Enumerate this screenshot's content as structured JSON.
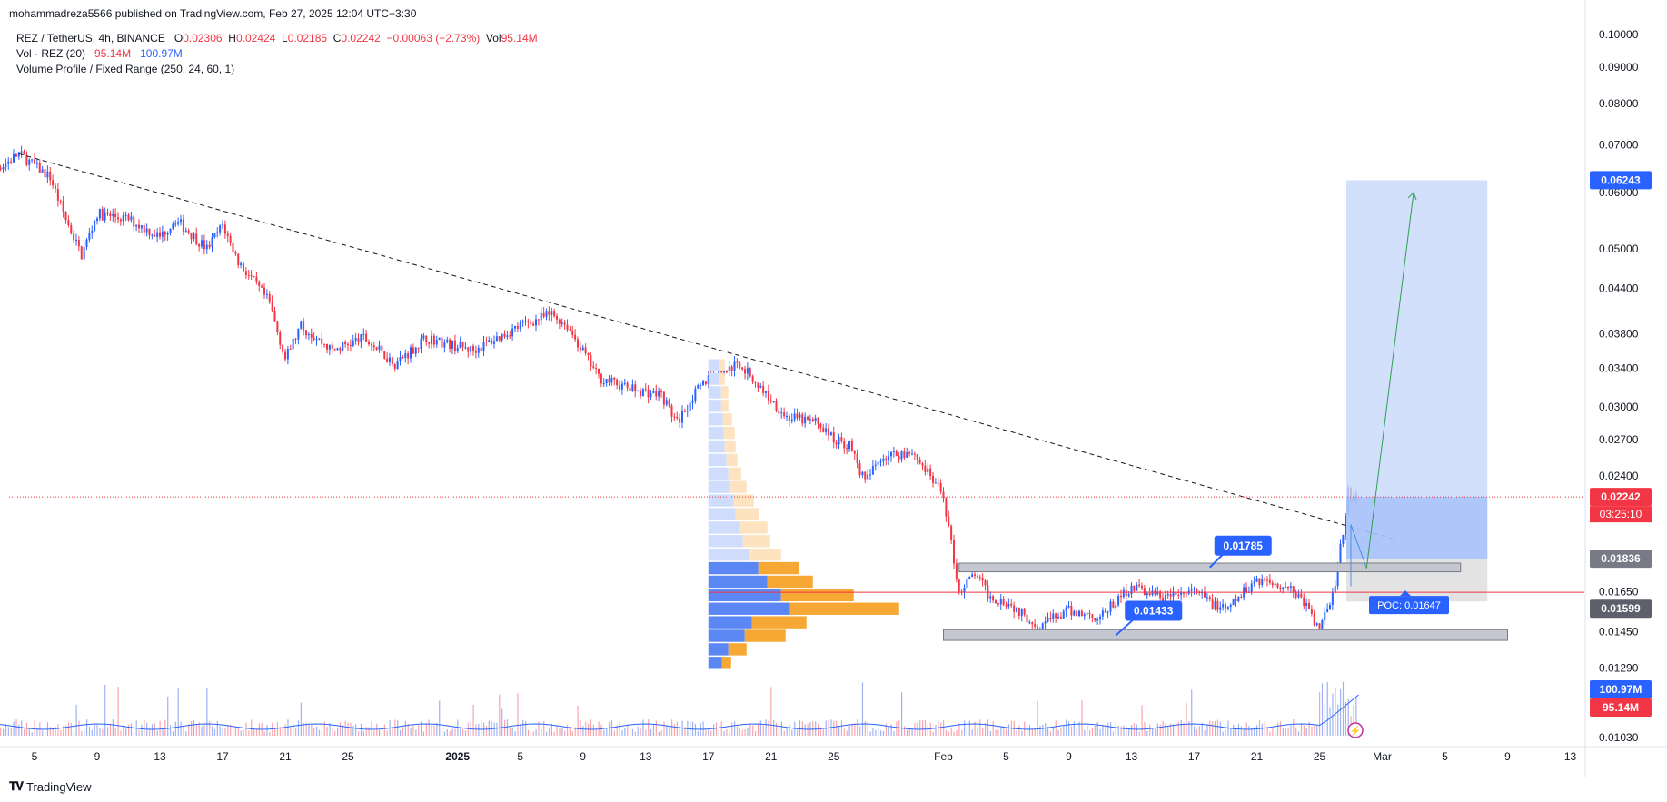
{
  "header": {
    "published": "mohammadreza5566 published on TradingView.com, Feb 27, 2025 12:04 UTC+3:30"
  },
  "legend": {
    "symbol": "REZ / TetherUS, 4h, BINANCE",
    "o_label": "O",
    "o_value": "0.02306",
    "h_label": "H",
    "h_value": "0.02424",
    "l_label": "L",
    "l_value": "0.02185",
    "c_label": "C",
    "c_value": "0.02242",
    "change": "−0.00063 (−2.73%)",
    "vol_label": "Vol",
    "vol_value": "95.14M",
    "vol_ind_label": "Vol · REZ (20)",
    "vol_ind_v1": "95.14M",
    "vol_ind_v2": "100.97M",
    "vp_label": "Volume Profile / Fixed Range (250, 24, 60, 1)"
  },
  "footer": {
    "brand": "TradingView",
    "logo_icon": "tradingview-logo-icon"
  },
  "colors": {
    "up": "#2962ff",
    "down": "#f23645",
    "trendline": "#131722",
    "target_zone": "#c8d8fb",
    "stop_zone": "#e0e0e0",
    "poc_line": "#f23645",
    "vp_up": "#5b87f5",
    "vp_down": "#f7a733"
  },
  "chart_data": {
    "type": "candlestick",
    "symbol": "REZ / TetherUS",
    "timeframe": "4h",
    "exchange": "BINANCE",
    "y_scale": "log",
    "ylim": [
      0.0103,
      0.1
    ],
    "y_ticks": [
      "0.10000",
      "0.09000",
      "0.08000",
      "0.07000",
      "0.06000",
      "0.05000",
      "0.04400",
      "0.03800",
      "0.03400",
      "0.03000",
      "0.02700",
      "0.02400",
      "0.01650",
      "0.01450",
      "0.01290",
      "0.01030"
    ],
    "x_ticks": [
      {
        "label": "5",
        "date": "2024-12-05"
      },
      {
        "label": "9",
        "date": "2024-12-09"
      },
      {
        "label": "13",
        "date": "2024-12-13"
      },
      {
        "label": "17",
        "date": "2024-12-17"
      },
      {
        "label": "21",
        "date": "2024-12-21"
      },
      {
        "label": "25",
        "date": "2024-12-25"
      },
      {
        "label": "2025",
        "date": "2025-01-01"
      },
      {
        "label": "5",
        "date": "2025-01-05"
      },
      {
        "label": "9",
        "date": "2025-01-09"
      },
      {
        "label": "13",
        "date": "2025-01-13"
      },
      {
        "label": "17",
        "date": "2025-01-17"
      },
      {
        "label": "21",
        "date": "2025-01-21"
      },
      {
        "label": "25",
        "date": "2025-01-25"
      },
      {
        "label": "Feb",
        "date": "2025-02-01"
      },
      {
        "label": "5",
        "date": "2025-02-05"
      },
      {
        "label": "9",
        "date": "2025-02-09"
      },
      {
        "label": "13",
        "date": "2025-02-13"
      },
      {
        "label": "17",
        "date": "2025-02-17"
      },
      {
        "label": "21",
        "date": "2025-02-21"
      },
      {
        "label": "25",
        "date": "2025-02-25"
      },
      {
        "label": "Mar",
        "date": "2025-03-01"
      },
      {
        "label": "5",
        "date": "2025-03-05"
      },
      {
        "label": "9",
        "date": "2025-03-09"
      },
      {
        "label": "13",
        "date": "2025-03-13"
      }
    ],
    "price_path": [
      {
        "date": "2024-12-01",
        "price": 0.0645
      },
      {
        "date": "2024-12-03",
        "price": 0.0655
      },
      {
        "date": "2024-12-04",
        "price": 0.068
      },
      {
        "date": "2024-12-06",
        "price": 0.063
      },
      {
        "date": "2024-12-07",
        "price": 0.055
      },
      {
        "date": "2024-12-08",
        "price": 0.049
      },
      {
        "date": "2024-12-09",
        "price": 0.056
      },
      {
        "date": "2024-12-11",
        "price": 0.055
      },
      {
        "date": "2024-12-13",
        "price": 0.052
      },
      {
        "date": "2024-12-14",
        "price": 0.055
      },
      {
        "date": "2024-12-16",
        "price": 0.05
      },
      {
        "date": "2024-12-17",
        "price": 0.054
      },
      {
        "date": "2024-12-18",
        "price": 0.048
      },
      {
        "date": "2024-12-20",
        "price": 0.042
      },
      {
        "date": "2024-12-21",
        "price": 0.035
      },
      {
        "date": "2024-12-22",
        "price": 0.039
      },
      {
        "date": "2024-12-24",
        "price": 0.036
      },
      {
        "date": "2024-12-26",
        "price": 0.0375
      },
      {
        "date": "2024-12-28",
        "price": 0.0345
      },
      {
        "date": "2024-12-30",
        "price": 0.0375
      },
      {
        "date": "2025-01-02",
        "price": 0.036
      },
      {
        "date": "2025-01-05",
        "price": 0.039
      },
      {
        "date": "2025-01-07",
        "price": 0.0405
      },
      {
        "date": "2025-01-08",
        "price": 0.039
      },
      {
        "date": "2025-01-10",
        "price": 0.033
      },
      {
        "date": "2025-01-12",
        "price": 0.0318
      },
      {
        "date": "2025-01-14",
        "price": 0.0312
      },
      {
        "date": "2025-01-15",
        "price": 0.0285
      },
      {
        "date": "2025-01-16",
        "price": 0.031
      },
      {
        "date": "2025-01-17",
        "price": 0.033
      },
      {
        "date": "2025-01-19",
        "price": 0.0345
      },
      {
        "date": "2025-01-20",
        "price": 0.0325
      },
      {
        "date": "2025-01-22",
        "price": 0.029
      },
      {
        "date": "2025-01-24",
        "price": 0.0285
      },
      {
        "date": "2025-01-25",
        "price": 0.027
      },
      {
        "date": "2025-01-26",
        "price": 0.0265
      },
      {
        "date": "2025-01-27",
        "price": 0.0235
      },
      {
        "date": "2025-01-28",
        "price": 0.0255
      },
      {
        "date": "2025-01-30",
        "price": 0.026
      },
      {
        "date": "2025-02-01",
        "price": 0.0225
      },
      {
        "date": "2025-02-02",
        "price": 0.0165
      },
      {
        "date": "2025-02-03",
        "price": 0.0175
      },
      {
        "date": "2025-02-04",
        "price": 0.0162
      },
      {
        "date": "2025-02-05",
        "price": 0.016
      },
      {
        "date": "2025-02-07",
        "price": 0.0148
      },
      {
        "date": "2025-02-09",
        "price": 0.0155
      },
      {
        "date": "2025-02-11",
        "price": 0.0152
      },
      {
        "date": "2025-02-13",
        "price": 0.0168
      },
      {
        "date": "2025-02-15",
        "price": 0.0162
      },
      {
        "date": "2025-02-17",
        "price": 0.0165
      },
      {
        "date": "2025-02-19",
        "price": 0.0155
      },
      {
        "date": "2025-02-21",
        "price": 0.0172
      },
      {
        "date": "2025-02-23",
        "price": 0.0168
      },
      {
        "date": "2025-02-24",
        "price": 0.016
      },
      {
        "date": "2025-02-25",
        "price": 0.0145
      },
      {
        "date": "2025-02-26",
        "price": 0.0168
      },
      {
        "date": "2025-02-27",
        "price": 0.0242
      },
      {
        "date": "2025-02-27",
        "price": 0.02242
      }
    ],
    "trendline": {
      "from": {
        "date": "2024-12-04",
        "price": 0.068
      },
      "to": {
        "date": "2025-03-02",
        "price": 0.0195
      }
    },
    "levels": [
      {
        "label": "0.01785",
        "price": 0.01785
      },
      {
        "label": "0.01433",
        "price": 0.01433
      },
      {
        "label": "POC: 0.01647",
        "price": 0.01647
      }
    ],
    "long_position": {
      "entry": 0.01836,
      "target": 0.06243,
      "stop": 0.01599,
      "from_date": "2025-02-27",
      "to_date": "2025-03-08"
    },
    "volume_profile": {
      "range_from": "2025-01-17",
      "range_to": "2025-02-27",
      "price_range": [
        0.0128,
        0.035
      ],
      "rows_up": [
        12,
        12,
        14,
        14,
        16,
        17,
        18,
        20,
        22,
        24,
        28,
        30,
        35,
        38,
        45,
        55,
        65,
        80,
        90,
        48,
        40,
        22,
        15
      ],
      "rows_down": [
        6,
        6,
        8,
        8,
        10,
        12,
        12,
        12,
        14,
        18,
        22,
        26,
        30,
        30,
        35,
        45,
        50,
        80,
        120,
        60,
        45,
        20,
        10
      ]
    },
    "price_labels": {
      "last": "0.02242",
      "countdown": "03:25:10",
      "target": "0.06243",
      "entry": "0.01836",
      "stop": "0.01599",
      "vol_sma": "100.97M",
      "vol": "95.14M"
    }
  }
}
